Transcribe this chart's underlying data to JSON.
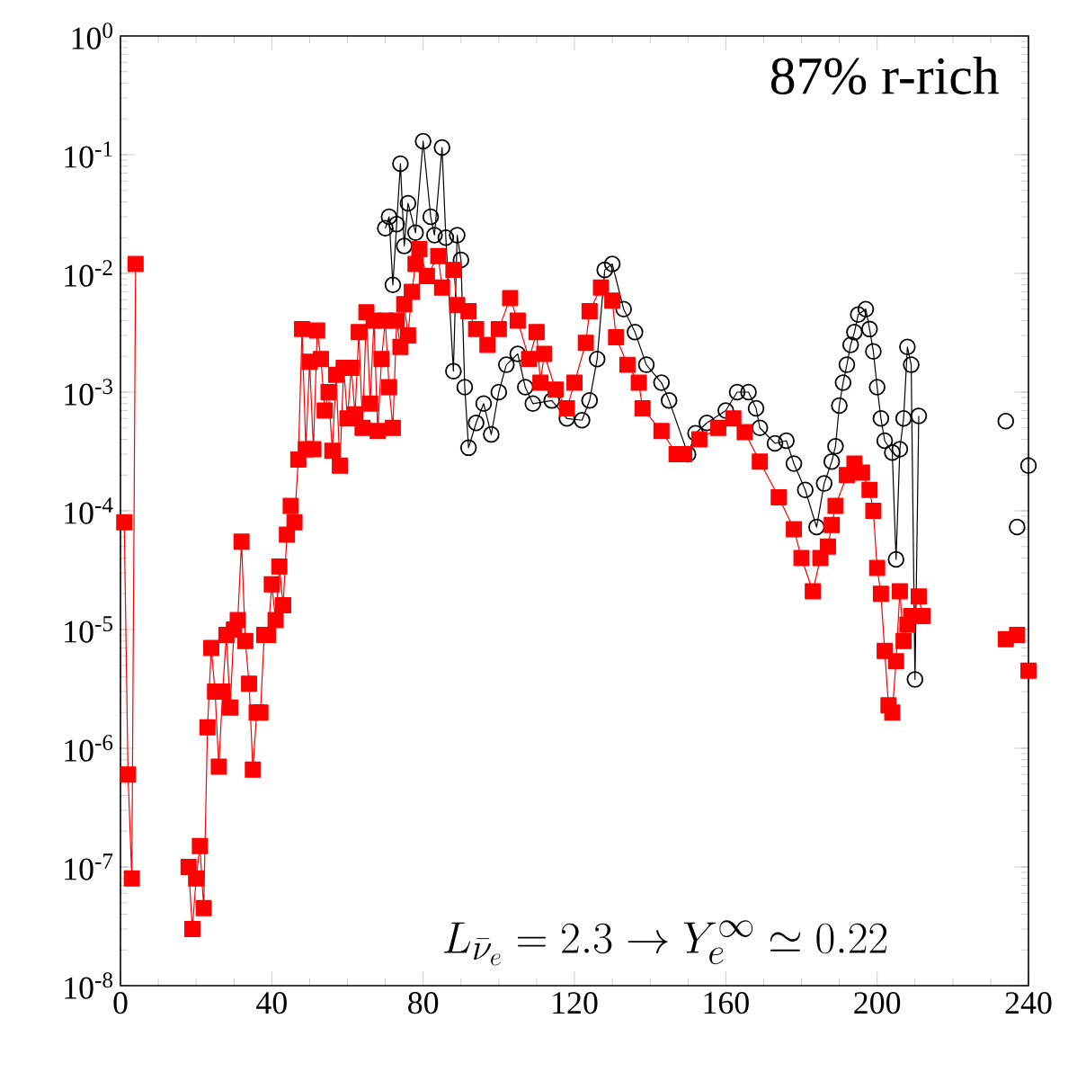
{
  "chart_data": {
    "type": "line",
    "title": "87% r-rich",
    "annotations": [
      "L_{\\bar{\\nu}_e} = 2.3 \\to Y_e^{\\infty} \\simeq 0.22"
    ],
    "log": "y",
    "xlim": [
      0,
      240
    ],
    "ylim": [
      1e-08,
      1
    ],
    "xticks": [
      0,
      40,
      80,
      120,
      160,
      200,
      240
    ],
    "yticks": [
      {
        "value": 1e-08,
        "label": "10$^{-8}$"
      },
      {
        "value": 1e-07,
        "label": "10$^{-7}$"
      },
      {
        "value": 1e-06,
        "label": "10$^{-6}$"
      },
      {
        "value": 1e-05,
        "label": "10$^{-5}$"
      },
      {
        "value": 0.0001,
        "label": "10$^{-4}$"
      },
      {
        "value": 0.001,
        "label": "10$^{-3}$"
      },
      {
        "value": 0.01,
        "label": "10$^{-2}$"
      },
      {
        "value": 0.1,
        "label": "10$^{-1}$"
      },
      {
        "value": 1,
        "label": "10$^{0}$"
      }
    ],
    "grid": false,
    "series": [
      {
        "color": "#000000",
        "marker": "circle",
        "line_style": "solid",
        "x": [
          70,
          71,
          72,
          73,
          74,
          75,
          76,
          78,
          80,
          82,
          83,
          85,
          86,
          88,
          89,
          90,
          91,
          92,
          94,
          96,
          98,
          100,
          102,
          105,
          107,
          109,
          114,
          118,
          122,
          124,
          126,
          128,
          130,
          133,
          136,
          139,
          143,
          145,
          150,
          152,
          155,
          160,
          163,
          166,
          168,
          169,
          173,
          176,
          178,
          181,
          184,
          186,
          188,
          189,
          190,
          191,
          192,
          193,
          194,
          195,
          197,
          198,
          199,
          200,
          201,
          202,
          204,
          205,
          206,
          207,
          208,
          209,
          210,
          211,
          212,
          234,
          235,
          237,
          238,
          240
        ],
        "values": [
          0.024,
          0.03,
          0.008,
          0.026,
          0.084,
          0.017,
          0.039,
          0.022,
          0.13,
          0.03,
          0.021,
          0.115,
          0.02,
          0.0015,
          0.021,
          0.013,
          0.0011,
          0.00034,
          0.00055,
          0.0008,
          0.00044,
          0.001,
          0.0017,
          0.0021,
          0.0011,
          0.0008,
          0.00085,
          0.0006,
          0.00058,
          0.00085,
          0.0019,
          0.0107,
          0.012,
          0.005,
          0.0032,
          0.0017,
          0.0012,
          0.00085,
          0.0003,
          0.00045,
          0.00055,
          0.0007,
          0.001,
          0.001,
          0.00073,
          0.0005,
          0.00037,
          0.00039,
          0.00025,
          0.00015,
          7.3e-05,
          0.00017,
          0.00026,
          0.00035,
          0.00077,
          0.0012,
          0.0017,
          0.0025,
          0.0032,
          0.0045,
          0.005,
          0.0034,
          0.0022,
          0.0011,
          0.0006,
          0.00039,
          0.00031,
          3.9e-05,
          0.00033,
          0.0006,
          0.0024,
          0.0017,
          3.8e-06,
          0.00063,
          null,
          0.00057,
          null,
          7.3e-05,
          null,
          0.00024
        ]
      },
      {
        "color": "#ff0000",
        "marker": "square",
        "line_style": "solid",
        "x": [
          1,
          2,
          3,
          4,
          5,
          18,
          19,
          20,
          21,
          22,
          23,
          24,
          25,
          26,
          27,
          28,
          29,
          30,
          31,
          32,
          33,
          34,
          35,
          36,
          37,
          38,
          39,
          40,
          41,
          42,
          43,
          44,
          45,
          46,
          47,
          48,
          49,
          50,
          51,
          52,
          53,
          54,
          55,
          56,
          57,
          58,
          59,
          60,
          61,
          62,
          63,
          64,
          65,
          66,
          67,
          68,
          69,
          70,
          71,
          72,
          73,
          74,
          75,
          76,
          77,
          78,
          79,
          81,
          84,
          85,
          88,
          89,
          92,
          94,
          97,
          100,
          103,
          105,
          108,
          110,
          111,
          112,
          115,
          118,
          120,
          123,
          124,
          127,
          130,
          131,
          134,
          137,
          138,
          143,
          147,
          149,
          153,
          158,
          162,
          165,
          169,
          174,
          178,
          180,
          183,
          185,
          187,
          188,
          189,
          192,
          194,
          196,
          198,
          199,
          200,
          201,
          202,
          203,
          204,
          205,
          206,
          207,
          208,
          209,
          211,
          212,
          213,
          234,
          235,
          237,
          238,
          240
        ],
        "values": [
          8e-05,
          6e-07,
          8e-08,
          0.012,
          null,
          1e-07,
          3e-08,
          8e-08,
          1.5e-07,
          4.5e-08,
          1.5e-06,
          7e-06,
          3e-06,
          7e-07,
          3e-06,
          9e-06,
          2.2e-06,
          1e-05,
          1.2e-05,
          5.5e-05,
          8e-06,
          3.5e-06,
          6.6e-07,
          2e-06,
          2e-06,
          9e-06,
          9e-06,
          2.4e-05,
          1.2e-05,
          3.4e-05,
          1.6e-05,
          6.3e-05,
          0.00011,
          8e-05,
          0.00027,
          0.0034,
          0.00033,
          0.0018,
          0.00033,
          0.0033,
          0.0019,
          0.0007,
          0.001,
          0.00032,
          0.0014,
          0.00024,
          0.0016,
          0.0006,
          0.0016,
          0.00065,
          0.0032,
          0.0005,
          0.0047,
          0.0008,
          0.004,
          0.00047,
          0.0019,
          0.004,
          0.0011,
          0.0005,
          0.004,
          0.0024,
          0.0055,
          0.003,
          0.007,
          0.012,
          0.016,
          0.0095,
          0.014,
          0.0076,
          0.0107,
          0.0054,
          0.0048,
          0.0034,
          0.0025,
          0.0034,
          0.0062,
          0.004,
          0.0019,
          0.0032,
          0.0012,
          0.0021,
          0.00105,
          0.00073,
          0.0012,
          0.0026,
          0.0048,
          0.0076,
          0.0059,
          0.0029,
          0.0017,
          0.0012,
          0.00073,
          0.00047,
          0.0003,
          0.0003,
          0.0004,
          0.0005,
          0.0006,
          0.00046,
          0.00026,
          0.00013,
          7e-05,
          4e-05,
          2.1e-05,
          4e-05,
          5e-05,
          7.6e-05,
          0.00011,
          0.0002,
          0.00025,
          0.00021,
          0.00015,
          0.0001,
          3.3e-05,
          2e-05,
          6.6e-06,
          2.3e-06,
          2e-06,
          5.4e-06,
          2.1e-05,
          8e-06,
          1.1e-05,
          1.3e-05,
          1.9e-05,
          1.3e-05,
          null,
          8.3e-06,
          null,
          9e-06,
          null,
          4.5e-06
        ]
      }
    ]
  }
}
